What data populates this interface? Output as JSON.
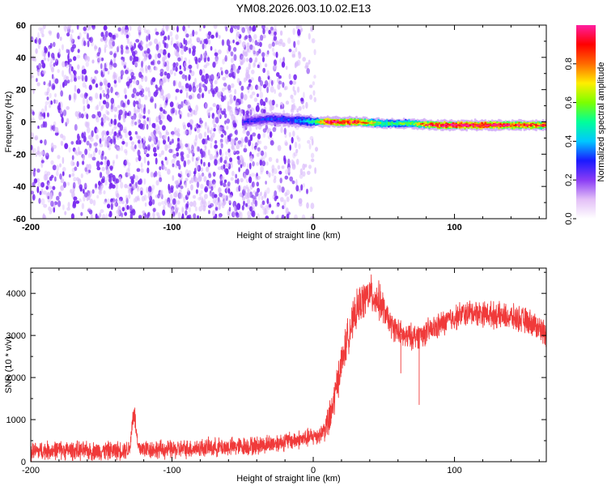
{
  "title": "YM08.2026.003.10.02.E13",
  "colors": {
    "snr_line": "#f03a3a",
    "heatmap_noise": "#7a2cf0",
    "heatmap_noise_light": "#d8b8fb",
    "colorbar_stops": [
      "#ffffff",
      "#e3bff7",
      "#8a3cf5",
      "#1a1aff",
      "#00c8ff",
      "#00ff9a",
      "#7cff00",
      "#ffee00",
      "#ff6a00",
      "#ff0000",
      "#ff1ea0"
    ]
  },
  "chart_data": [
    {
      "type": "heatmap",
      "title": "",
      "xlabel": "Height of straight line (km)",
      "ylabel": "Frequency (Hz)",
      "xlim": [
        -200,
        165
      ],
      "ylim": [
        -60,
        60
      ],
      "xticks": [
        "-200",
        "-100",
        "0",
        "100"
      ],
      "xtick_values": [
        -200,
        -100,
        0,
        100
      ],
      "yticks": [
        "60",
        "40",
        "20",
        "0",
        "-20",
        "-40",
        "-60"
      ],
      "ytick_values": [
        60,
        40,
        20,
        0,
        -20,
        -40,
        -60
      ],
      "colorbar": {
        "label": "Normalized spectral amplitude",
        "ticks": [
          "0.0",
          "0.2",
          "0.4",
          "0.6",
          "0.8"
        ],
        "tick_values": [
          0.0,
          0.2,
          0.4,
          0.6,
          0.8
        ],
        "range": [
          0,
          1
        ]
      },
      "noise_region_x": [
        -200,
        -5
      ],
      "signal_ridge": [
        {
          "x": -50,
          "freq": 0,
          "amp": 0.25
        },
        {
          "x": -30,
          "freq": 2,
          "amp": 0.3
        },
        {
          "x": -15,
          "freq": 1,
          "amp": 0.3
        },
        {
          "x": 0,
          "freq": 0,
          "amp": 0.45
        },
        {
          "x": 10,
          "freq": 0,
          "amp": 0.95
        },
        {
          "x": 30,
          "freq": 0,
          "amp": 0.85
        },
        {
          "x": 50,
          "freq": -1,
          "amp": 0.5
        },
        {
          "x": 70,
          "freq": -1,
          "amp": 0.55
        },
        {
          "x": 85,
          "freq": -2,
          "amp": 0.9
        },
        {
          "x": 110,
          "freq": -2,
          "amp": 0.95
        },
        {
          "x": 140,
          "freq": -2,
          "amp": 0.9
        },
        {
          "x": 165,
          "freq": -2,
          "amp": 0.8
        }
      ]
    },
    {
      "type": "line",
      "title": "",
      "xlabel": "Height of straight line (km)",
      "ylabel": "SNR (10 * v/v)",
      "xlim": [
        -200,
        165
      ],
      "ylim": [
        0,
        4600
      ],
      "xticks": [
        "-200",
        "-100",
        "0",
        "100"
      ],
      "xtick_values": [
        -200,
        -100,
        0,
        100
      ],
      "yticks": [
        "0",
        "1000",
        "2000",
        "3000",
        "4000"
      ],
      "ytick_values": [
        0,
        1000,
        2000,
        3000,
        4000
      ],
      "series": [
        {
          "name": "SNR",
          "x": [
            -200,
            -180,
            -160,
            -140,
            -130,
            -127,
            -124,
            -115,
            -100,
            -80,
            -60,
            -40,
            -20,
            -5,
            5,
            12,
            18,
            25,
            32,
            40,
            47,
            55,
            65,
            75,
            85,
            95,
            105,
            115,
            125,
            135,
            145,
            155,
            165
          ],
          "y": [
            250,
            280,
            250,
            260,
            300,
            1250,
            320,
            300,
            280,
            330,
            350,
            380,
            480,
            550,
            650,
            1000,
            2050,
            3050,
            3700,
            4000,
            3800,
            3250,
            2950,
            3000,
            3150,
            3350,
            3500,
            3550,
            3500,
            3450,
            3400,
            3300,
            3050
          ]
        }
      ],
      "annotations": [
        {
          "x": 75,
          "y": 1350,
          "kind": "downward-spike"
        },
        {
          "x": 62,
          "y": 2100,
          "kind": "downward-spike"
        }
      ]
    }
  ]
}
